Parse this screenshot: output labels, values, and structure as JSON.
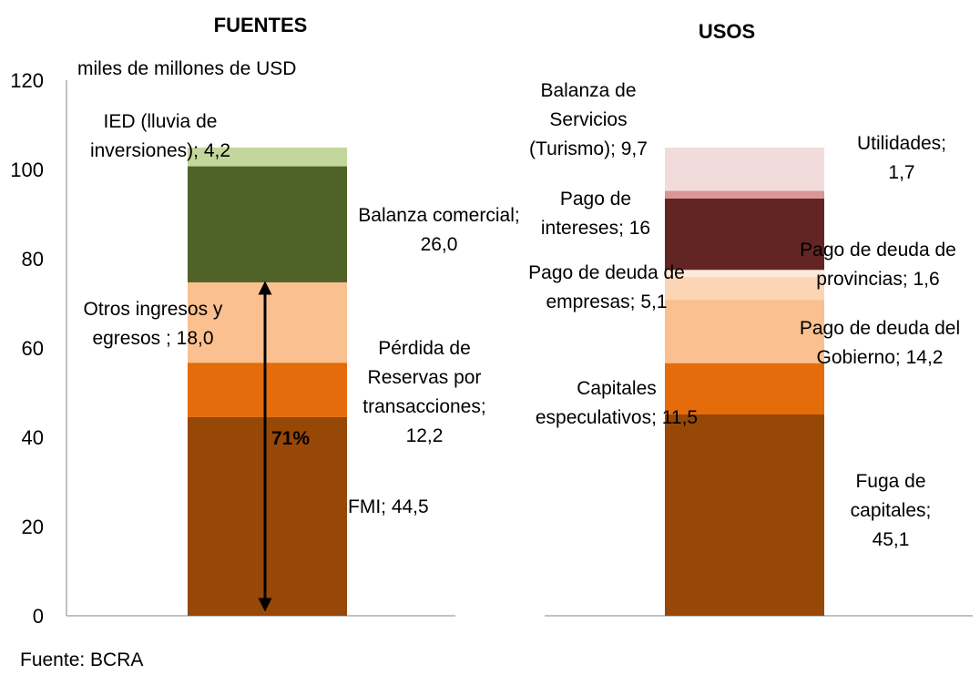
{
  "chart_data": [
    {
      "type": "bar",
      "stacked": true,
      "title": "FUENTES",
      "ylabel": "miles de millones de USD",
      "ylim": [
        0,
        120
      ],
      "yticks": [
        "0",
        "20",
        "40",
        "60",
        "80",
        "100",
        "120"
      ],
      "segments": [
        {
          "name": "FMI",
          "value": 44.5,
          "color": "#974706",
          "label": [
            "FMI; 44,5"
          ]
        },
        {
          "name": "Pérdida de Reservas por transacciones",
          "value": 12.2,
          "color": "#E46C0A",
          "label": [
            "Pérdida de",
            "Reservas por",
            "transacciones;",
            "12,2"
          ]
        },
        {
          "name": "Otros ingresos y egresos",
          "value": 18.0,
          "color": "#FAC090",
          "label": [
            "Otros ingresos y",
            "egresos ; 18,0"
          ]
        },
        {
          "name": "Balanza comercial",
          "value": 26.0,
          "color": "#4F6228",
          "label": [
            "Balanza comercial;",
            "26,0"
          ]
        },
        {
          "name": "IED (lluvia de inversiones)",
          "value": 4.2,
          "color": "#C3D69B",
          "label": [
            "IED (lluvia de",
            "inversiones); 4,2"
          ]
        }
      ],
      "annotation": {
        "text": "71%",
        "from": 0,
        "to": 74.7
      }
    },
    {
      "type": "bar",
      "stacked": true,
      "title": "USOS",
      "ylim": [
        0,
        120
      ],
      "segments": [
        {
          "name": "Fuga de capitales",
          "value": 45.1,
          "color": "#974706",
          "label": [
            "Fuga de",
            "capitales;",
            "45,1"
          ]
        },
        {
          "name": "Capitales especulativos",
          "value": 11.5,
          "color": "#E46C0A",
          "label": [
            "Capitales",
            "especulativos; 11,5"
          ]
        },
        {
          "name": "Pago de deuda del Gobierno",
          "value": 14.2,
          "color": "#FAC090",
          "label": [
            "Pago de deuda del",
            "Gobierno; 14,2"
          ]
        },
        {
          "name": "Pago de deuda de empresas",
          "value": 5.1,
          "color": "#FCD5B5",
          "label": [
            "Pago de deuda de",
            "empresas; 5,1"
          ]
        },
        {
          "name": "Pago de deuda de provincias",
          "value": 1.6,
          "color": "#FDE9D9",
          "label": [
            "Pago de deuda de",
            "provincias; 1,6"
          ]
        },
        {
          "name": "Pago de intereses",
          "value": 16,
          "color": "#632523",
          "label": [
            "Pago de",
            "intereses; 16"
          ]
        },
        {
          "name": "Utilidades",
          "value": 1.7,
          "color": "#D99694",
          "label": [
            "Utilidades;",
            "1,7"
          ]
        },
        {
          "name": "Balanza de Servicios (Turismo)",
          "value": 9.7,
          "color": "#F2DCDB",
          "label": [
            "Balanza de",
            "Servicios",
            "(Turismo); 9,7"
          ]
        }
      ]
    }
  ],
  "source": "Fuente: BCRA"
}
